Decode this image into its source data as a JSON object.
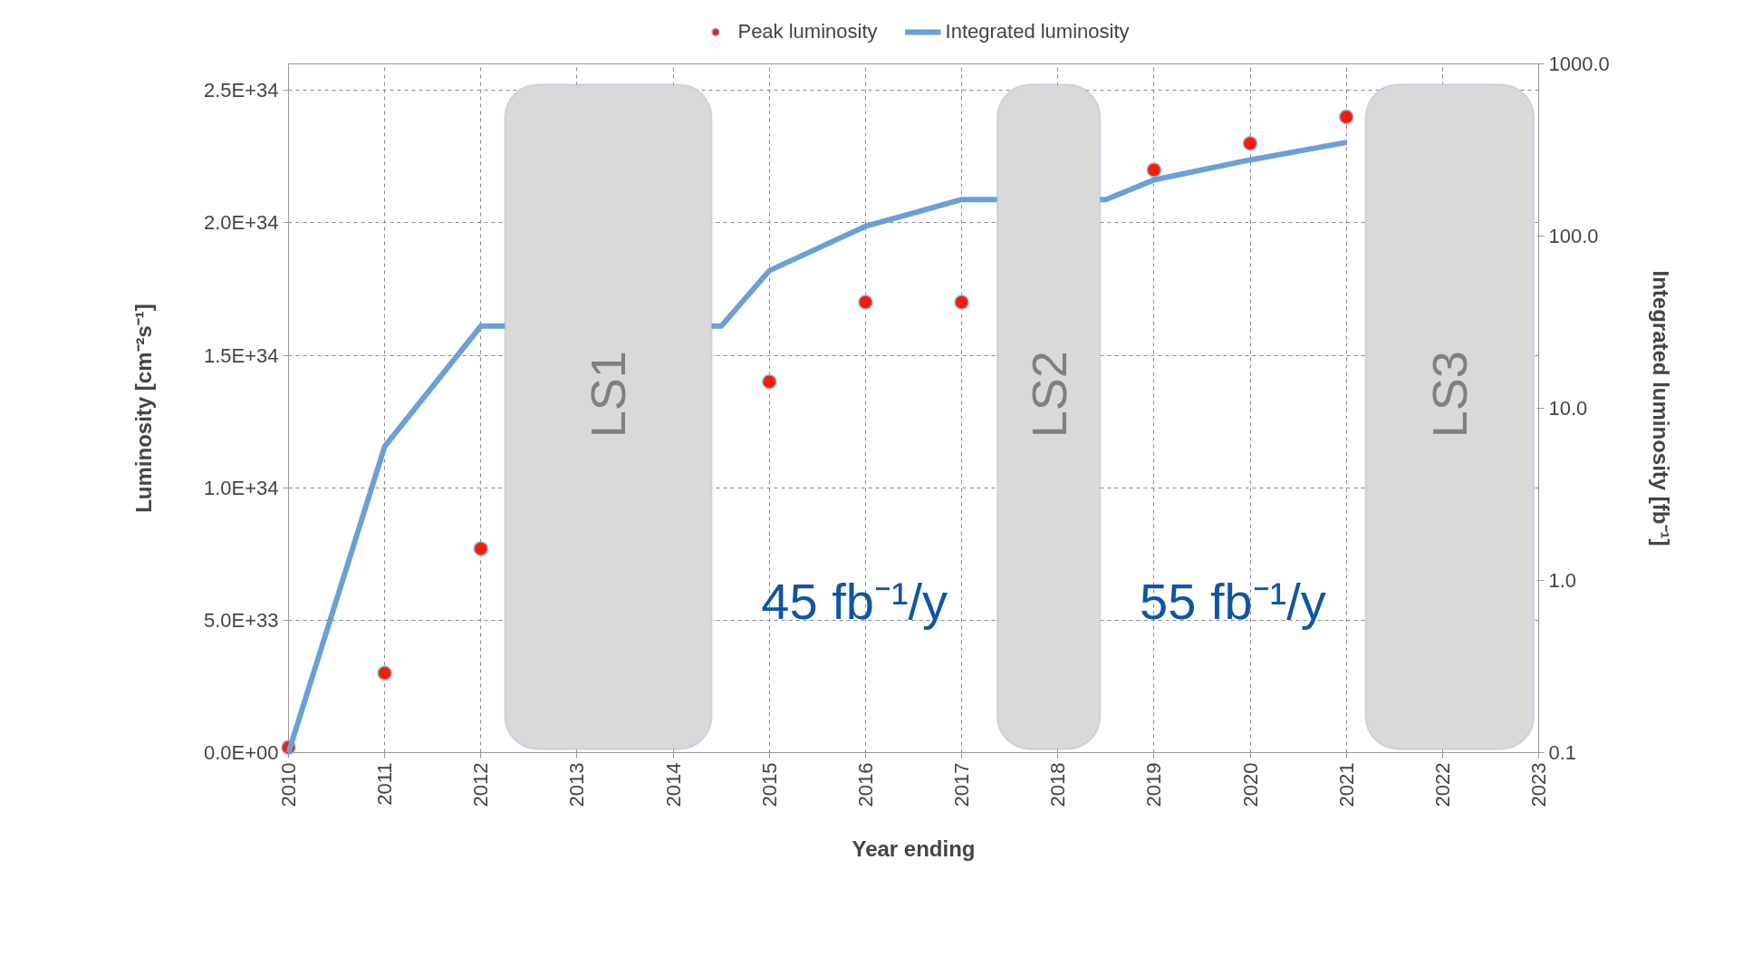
{
  "chart_data": {
    "type": "scatter",
    "xlabel": "Year ending",
    "ylabel": "Luminosity [cm⁻²s⁻¹]",
    "y2label": "Integrated luminosity [fb⁻¹]",
    "x": [
      2010,
      2011,
      2012,
      2015,
      2016,
      2017,
      2019,
      2020,
      2021
    ],
    "series": [
      {
        "name": "Peak luminosity",
        "color": "#ff1a00",
        "marker": "circle",
        "values": [
          2e+32,
          3e+33,
          7.7e+33,
          1.4e+34,
          1.7e+34,
          1.7e+34,
          2.2e+34,
          2.3e+34,
          2.4e+34
        ]
      },
      {
        "name": "Integrated luminosity",
        "type": "line",
        "axis": "y2",
        "color": "#6a9fd8",
        "x": [
          2010,
          2011,
          2012,
          2014.5,
          2015,
          2016,
          2017,
          2018.5,
          2019,
          2020,
          2021
        ],
        "values": [
          0.1,
          6,
          30,
          30,
          63,
          114,
          163,
          163,
          212,
          277,
          350
        ]
      }
    ],
    "xlim": [
      2010,
      2023
    ],
    "xticks": [
      2010,
      2011,
      2012,
      2013,
      2014,
      2015,
      2016,
      2017,
      2018,
      2019,
      2020,
      2021,
      2022,
      2023
    ],
    "ylim": [
      0,
      2.6e+34
    ],
    "yticks": [
      {
        "value": 0,
        "label": "0.0E+00"
      },
      {
        "value": 5e+33,
        "label": "5.0E+33"
      },
      {
        "value": 1e+34,
        "label": "1.0E+34"
      },
      {
        "value": 1.5e+34,
        "label": "1.5E+34"
      },
      {
        "value": 2e+34,
        "label": "2.0E+34"
      },
      {
        "value": 2.5e+34,
        "label": "2.5E+34"
      }
    ],
    "y2lim": [
      0.1,
      1000
    ],
    "y2ticks": [
      {
        "value": 0.1,
        "label": "0.1"
      },
      {
        "value": 1,
        "label": "1.0"
      },
      {
        "value": 10,
        "label": "10.0"
      },
      {
        "value": 100,
        "label": "100.0"
      },
      {
        "value": 1000,
        "label": "1000.0"
      }
    ],
    "log": "y2",
    "bands": [
      {
        "axis": "x",
        "from": 2012.25,
        "to": 2014.4,
        "label": "LS1",
        "color": "#d9d9d9"
      },
      {
        "axis": "x",
        "from": 2017.37,
        "to": 2018.44,
        "label": "LS2",
        "color": "#d9d9d9"
      },
      {
        "axis": "x",
        "from": 2021.2,
        "to": 2022.95,
        "label": "LS3",
        "color": "#d9d9d9"
      }
    ],
    "annotations": [
      "45 fb⁻¹/y",
      "55 fb⁻¹/y"
    ],
    "grid": true,
    "legend": "top",
    "line_style": "solid"
  }
}
